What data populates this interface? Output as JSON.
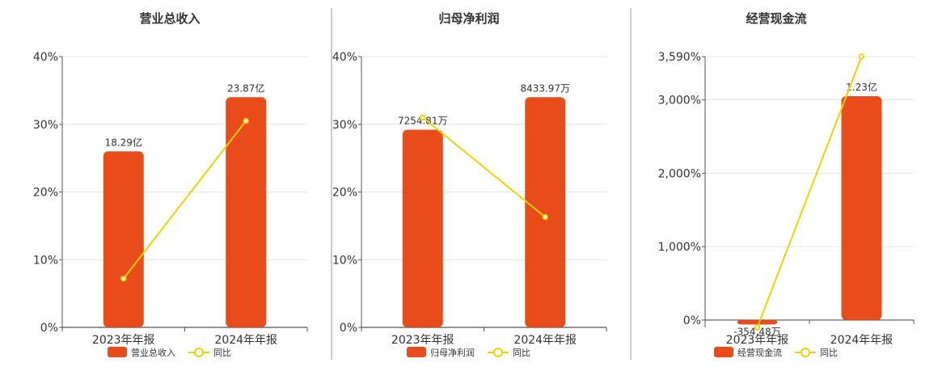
{
  "colors": {
    "bar": "#e84c1b",
    "line": "#f5d000",
    "grid": "#e6e6e6",
    "axis": "#555555",
    "text": "#333333",
    "divider": "#9a9a9a"
  },
  "chart_data": [
    {
      "type": "bar",
      "title": "营业总收入",
      "categories": [
        "2023年年报",
        "2024年年报"
      ],
      "series": [
        {
          "name": "营业总收入",
          "type": "bar",
          "values": [
            26,
            34
          ],
          "labels": [
            "18.29亿",
            "23.87亿"
          ]
        },
        {
          "name": "同比",
          "type": "line",
          "values": [
            7.2,
            30.5
          ]
        }
      ],
      "ylim": [
        0,
        40
      ],
      "yticks": [
        0,
        10,
        20,
        30,
        40
      ],
      "ytick_labels": [
        "0%",
        "10%",
        "20%",
        "30%",
        "40%"
      ],
      "grid": true,
      "legend": "bottom-center"
    },
    {
      "type": "bar",
      "title": "归母净利润",
      "categories": [
        "2023年年报",
        "2024年年报"
      ],
      "series": [
        {
          "name": "归母净利润",
          "type": "bar",
          "values": [
            29.2,
            34
          ],
          "labels": [
            "7254.81万",
            "8433.97万"
          ]
        },
        {
          "name": "同比",
          "type": "line",
          "values": [
            31,
            16.3
          ]
        }
      ],
      "ylim": [
        0,
        40
      ],
      "yticks": [
        0,
        10,
        20,
        30,
        40
      ],
      "ytick_labels": [
        "0%",
        "10%",
        "20%",
        "30%",
        "40%"
      ],
      "grid": true,
      "legend": "bottom-center"
    },
    {
      "type": "bar",
      "title": "经营现金流",
      "categories": [
        "2023年年报",
        "2024年年报"
      ],
      "series": [
        {
          "name": "经营现金流",
          "type": "bar",
          "values": [
            -60,
            3050
          ],
          "labels": [
            "-354.48万",
            "1.23亿"
          ]
        },
        {
          "name": "同比",
          "type": "line",
          "values": [
            -100,
            3590
          ]
        }
      ],
      "ylim": [
        -100,
        3590
      ],
      "yticks": [
        0,
        1000,
        2000,
        3000,
        3590
      ],
      "ytick_labels": [
        "0%",
        "1,000%",
        "2,000%",
        "3,000%",
        "3,590%"
      ],
      "grid": true,
      "legend": "bottom-center"
    }
  ]
}
